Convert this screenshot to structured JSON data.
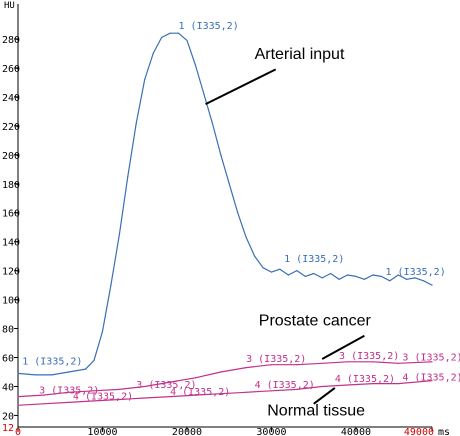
{
  "chart_data": {
    "type": "line",
    "y_unit": "HU",
    "x_unit": "ms",
    "x_axis": {
      "min": 0,
      "max": 49000,
      "ticks": [
        "0",
        "10000",
        "20000",
        "30000",
        "40000",
        "49000"
      ]
    },
    "y_axis": {
      "min": 12,
      "max": 300,
      "ticks": [
        "12",
        "20",
        "40",
        "60",
        "80",
        "100",
        "120",
        "140",
        "160",
        "180",
        "200",
        "220",
        "240",
        "260",
        "280"
      ]
    },
    "grid": false,
    "series": [
      {
        "name": "1 (I335,2)",
        "color": "#3a6fb5",
        "x": [
          0,
          2000,
          4000,
          6000,
          8000,
          9000,
          10000,
          11000,
          12000,
          13000,
          14000,
          15000,
          16000,
          17000,
          18000,
          19000,
          20000,
          21000,
          22000,
          23000,
          24000,
          25000,
          26000,
          27000,
          28000,
          29000,
          30000,
          31000,
          32000,
          33000,
          34000,
          35000,
          36000,
          37000,
          38000,
          39000,
          40000,
          41000,
          42000,
          43000,
          44000,
          45000,
          46000,
          47000,
          48000,
          49000
        ],
        "values": [
          49,
          48,
          48,
          50,
          52,
          58,
          78,
          110,
          145,
          185,
          222,
          252,
          270,
          281,
          284,
          284,
          279,
          262,
          242,
          222,
          200,
          180,
          160,
          143,
          130,
          122,
          119,
          121,
          117,
          120,
          116,
          118,
          115,
          118,
          114,
          117,
          116,
          114,
          117,
          116,
          113,
          117,
          114,
          115,
          113,
          110
        ]
      },
      {
        "name": "3 (I335,2)",
        "color": "#c2308a",
        "x": [
          0,
          3000,
          6000,
          9000,
          12000,
          15000,
          18000,
          21000,
          24000,
          27000,
          30000,
          33000,
          36000,
          39000,
          42000,
          45000,
          49000
        ],
        "values": [
          33,
          34,
          36,
          37,
          38,
          40,
          43,
          46,
          50,
          53,
          55,
          55,
          56,
          57,
          57,
          56,
          57
        ]
      },
      {
        "name": "4 (I335,2)",
        "color": "#c2308a",
        "x": [
          0,
          3000,
          6000,
          9000,
          12000,
          15000,
          18000,
          21000,
          24000,
          27000,
          30000,
          33000,
          36000,
          39000,
          42000,
          45000,
          49000
        ],
        "values": [
          27,
          28,
          29,
          30,
          31,
          32,
          33,
          34,
          35,
          36,
          37,
          38,
          40,
          41,
          42,
          42,
          44
        ]
      }
    ],
    "series_labels": [
      {
        "text": "1 (I335,2)",
        "series": 0,
        "x": 19000,
        "y": 287
      },
      {
        "text": "1 (I335,2)",
        "series": 0,
        "x": 500,
        "y": 55
      },
      {
        "text": "1 (I335,2)",
        "series": 0,
        "x": 31500,
        "y": 126
      },
      {
        "text": "1 (I335,2)",
        "series": 0,
        "x": 43500,
        "y": 117
      },
      {
        "text": "3 (I335,2)",
        "series": 1,
        "x": 2500,
        "y": 35
      },
      {
        "text": "3 (I335,2)",
        "series": 1,
        "x": 14000,
        "y": 39
      },
      {
        "text": "3 (I335,2)",
        "series": 1,
        "x": 27000,
        "y": 57
      },
      {
        "text": "3 (I335,2)",
        "series": 1,
        "x": 38000,
        "y": 59
      },
      {
        "text": "3 (I335,2)",
        "series": 1,
        "x": 45500,
        "y": 58
      },
      {
        "text": "4 (I335,2)",
        "series": 2,
        "x": 6500,
        "y": 31
      },
      {
        "text": "4 (I335,2)",
        "series": 2,
        "x": 18000,
        "y": 34
      },
      {
        "text": "4 (I335,2)",
        "series": 2,
        "x": 28000,
        "y": 39
      },
      {
        "text": "4 (I335,2)",
        "series": 2,
        "x": 37500,
        "y": 43
      },
      {
        "text": "4 (I335,2)",
        "series": 2,
        "x": 45500,
        "y": 44
      }
    ],
    "annotations": [
      {
        "text": "Arterial input",
        "x": 28000,
        "y": 266,
        "arrow_from": [
          30500,
          259
        ],
        "arrow_to": [
          22200,
          235
        ]
      },
      {
        "text": "Prostate cancer",
        "x": 28500,
        "y": 82,
        "arrow_from": [
          41000,
          75
        ],
        "arrow_to": [
          36000,
          59
        ]
      },
      {
        "text": "Normal tissue",
        "x": 29500,
        "y": 20,
        "arrow_from": [
          35000,
          28
        ],
        "arrow_to": [
          37500,
          39
        ]
      }
    ]
  }
}
